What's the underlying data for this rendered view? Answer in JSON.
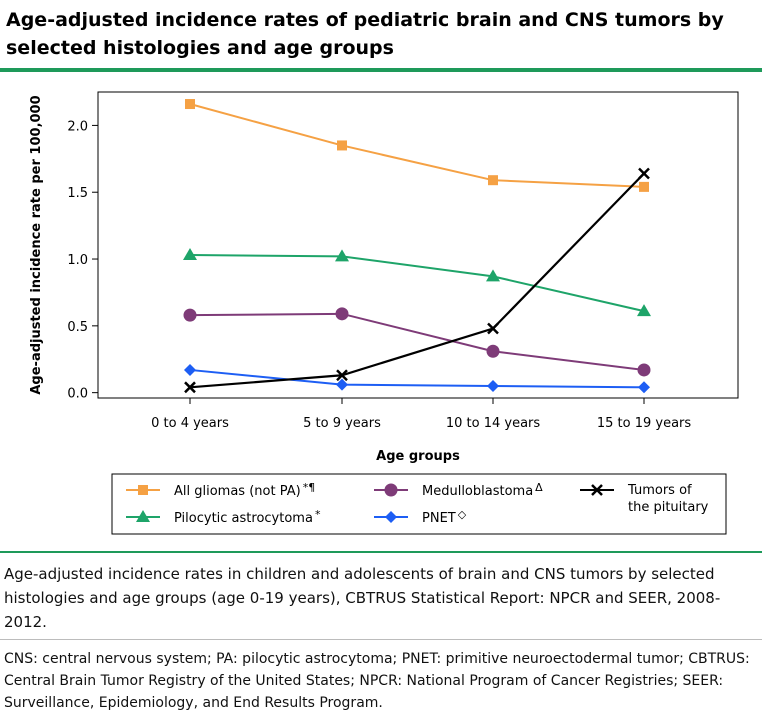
{
  "title": "Age-adjusted incidence rates of pediatric brain and CNS tumors by selected histologies and age groups",
  "caption": "Age-adjusted incidence rates in children and adolescents of brain and CNS tumors by selected histologies and age groups (age 0-19 years), CBTRUS Statistical Report: NPCR and SEER, 2008-2012.",
  "footnote": "CNS: central nervous system; PA: pilocytic astrocytoma; PNET: primitive neuroectodermal tumor; CBTRUS: Central Brain Tumor Registry of the United States; NPCR: National Program of Cancer Registries; SEER: Surveillance, Epidemiology, and End Results Program.",
  "colors": {
    "accent_rule": "#1e9a5a"
  },
  "chart_data": {
    "type": "line",
    "xlabel": "Age groups",
    "ylabel": "Age-adjusted incidence rate per 100,000",
    "categories": [
      "0 to 4 years",
      "5 to 9 years",
      "10 to 14 years",
      "15 to 19 years"
    ],
    "ylim": [
      -0.04,
      2.25
    ],
    "yticks": [
      0.0,
      0.5,
      1.0,
      1.5,
      2.0
    ],
    "ytick_labels": [
      "0.0",
      "0.5",
      "1.0",
      "1.5",
      "2.0"
    ],
    "grid": false,
    "legend_position": "bottom",
    "series": [
      {
        "name": "All gliomas (not PA)",
        "superscript": "*¶",
        "color": "#f5a144",
        "marker": "square",
        "values": [
          2.16,
          1.85,
          1.59,
          1.54
        ]
      },
      {
        "name": "Pilocytic astrocytoma",
        "superscript": "*",
        "color": "#1ea469",
        "marker": "triangle",
        "values": [
          1.03,
          1.02,
          0.87,
          0.61
        ]
      },
      {
        "name": "Medulloblastoma",
        "superscript": "Δ",
        "color": "#7e3b78",
        "marker": "circle",
        "values": [
          0.58,
          0.59,
          0.31,
          0.17
        ]
      },
      {
        "name": "PNET",
        "superscript": "◇",
        "color": "#1d5ef4",
        "marker": "diamond",
        "values": [
          0.17,
          0.06,
          0.05,
          0.04
        ]
      },
      {
        "name": "Tumors of the pituitary",
        "superscript": "",
        "color": "#000000",
        "marker": "x",
        "values": [
          0.04,
          0.13,
          0.48,
          1.64
        ]
      }
    ]
  }
}
